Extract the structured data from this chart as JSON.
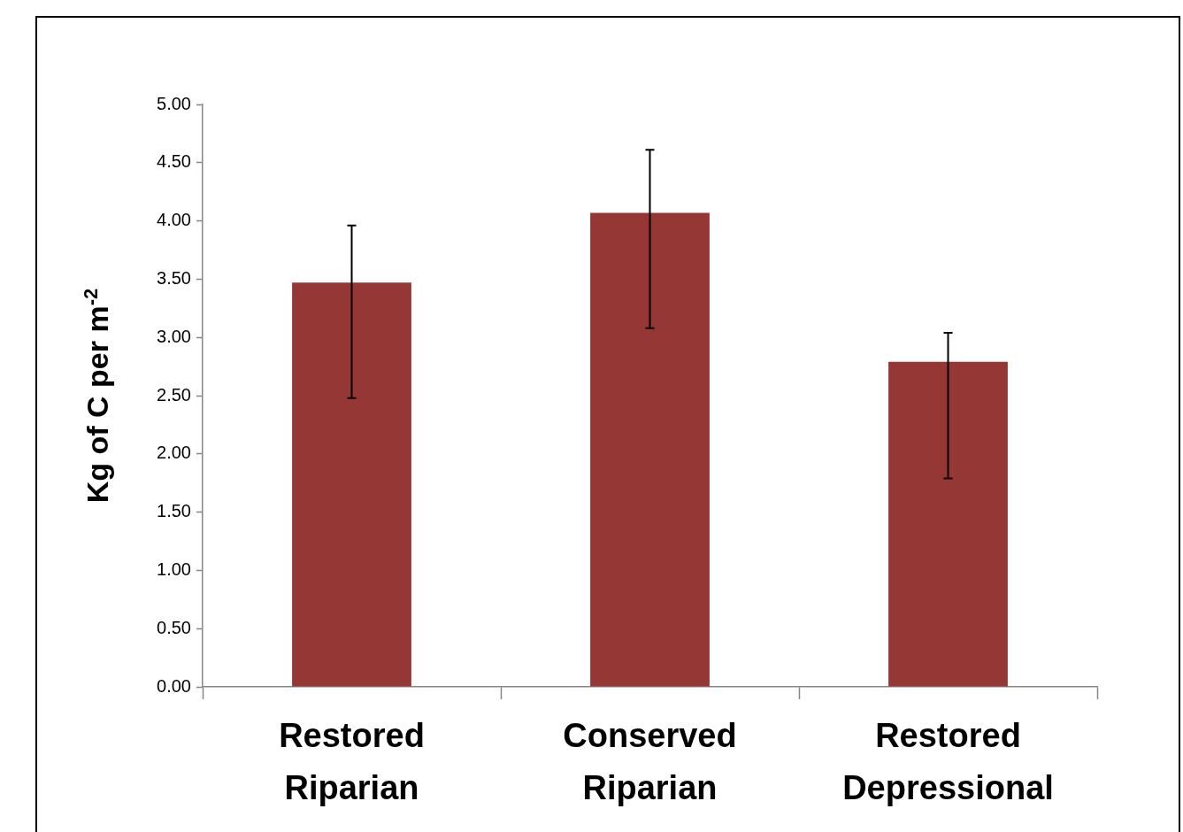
{
  "chart_data": {
    "type": "bar",
    "ylabel": "Kg of C per m$^{-2}$",
    "categories": [
      "Restored Riparian",
      "Conserved Riparian",
      "Restored Depressional"
    ],
    "values": [
      3.47,
      4.07,
      2.79
    ],
    "color": "#953735",
    "errors": [
      [
        2.48,
        3.96
      ],
      [
        3.08,
        4.61
      ],
      [
        1.79,
        3.04
      ]
    ],
    "ylim": [
      0,
      5
    ],
    "yticks": [
      {
        "value": 0,
        "label": "0.00"
      },
      {
        "value": 0.5,
        "label": "0.50"
      },
      {
        "value": 1,
        "label": "1.00"
      },
      {
        "value": 1.5,
        "label": "1.50"
      },
      {
        "value": 2,
        "label": "2.00"
      },
      {
        "value": 2.5,
        "label": "2.50"
      },
      {
        "value": 3,
        "label": "3.00"
      },
      {
        "value": 3.5,
        "label": "3.50"
      },
      {
        "value": 4,
        "label": "4.00"
      },
      {
        "value": 4.5,
        "label": "4.50"
      },
      {
        "value": 5,
        "label": "5.00"
      }
    ],
    "grid": false,
    "legend": false
  }
}
